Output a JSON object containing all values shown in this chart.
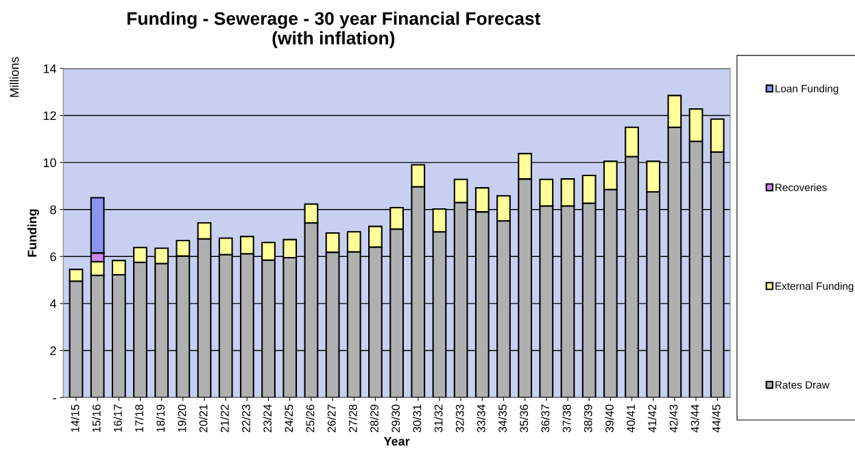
{
  "chart_data": {
    "type": "bar",
    "stacked": true,
    "title": "Funding - Sewerage - 30 year Financial Forecast\n(with inflation)",
    "xlabel": "Year",
    "ylabel": "Funding",
    "annotations": [
      "Millions"
    ],
    "categories": [
      "14/15",
      "15/16",
      "16/17",
      "17/18",
      "18/19",
      "19/20",
      "20/21",
      "21/22",
      "22/23",
      "23/24",
      "24/25",
      "25/26",
      "26/27",
      "27/28",
      "28/29",
      "29/30",
      "30/31",
      "31/32",
      "32/33",
      "33/34",
      "34/35",
      "35/36",
      "36/37",
      "37/38",
      "38/39",
      "39/40",
      "40/41",
      "41/42",
      "42/43",
      "43/44",
      "44/45"
    ],
    "series": [
      {
        "name": "Rates Draw",
        "color": "#b0b0b0",
        "values": [
          4.95,
          5.2,
          5.22,
          5.75,
          5.7,
          6.02,
          6.75,
          6.08,
          6.12,
          5.85,
          5.95,
          7.43,
          6.18,
          6.2,
          6.4,
          7.17,
          8.97,
          7.05,
          8.3,
          7.9,
          7.52,
          9.3,
          8.15,
          8.15,
          8.27,
          8.85,
          10.25,
          8.75,
          11.5,
          10.9,
          10.45
        ]
      },
      {
        "name": "External Funding",
        "color": "#ffff99",
        "values": [
          0.5,
          0.58,
          0.61,
          0.63,
          0.65,
          0.66,
          0.68,
          0.7,
          0.73,
          0.75,
          0.77,
          0.8,
          0.82,
          0.85,
          0.88,
          0.91,
          0.93,
          0.97,
          0.98,
          1.02,
          1.06,
          1.08,
          1.13,
          1.15,
          1.18,
          1.2,
          1.25,
          1.3,
          1.35,
          1.38,
          1.4
        ]
      },
      {
        "name": "Recoveries",
        "color": "#cc88ee",
        "values": [
          null,
          0.37,
          null,
          null,
          null,
          null,
          null,
          null,
          null,
          null,
          null,
          null,
          null,
          null,
          null,
          null,
          null,
          null,
          null,
          null,
          null,
          null,
          null,
          null,
          null,
          null,
          null,
          null,
          null,
          null,
          null
        ]
      },
      {
        "name": "Loan Funding",
        "color": "#8c94f0",
        "values": [
          null,
          2.35,
          null,
          null,
          null,
          null,
          null,
          null,
          null,
          null,
          null,
          null,
          null,
          null,
          null,
          null,
          null,
          null,
          null,
          null,
          null,
          null,
          null,
          null,
          null,
          null,
          null,
          null,
          null,
          null,
          null
        ]
      }
    ],
    "ylim": [
      0,
      14
    ],
    "yticks": [
      {
        "value": 0,
        "label": "-"
      },
      2,
      4,
      6,
      8,
      10,
      12,
      14
    ],
    "grid": "y",
    "legend": "right"
  }
}
